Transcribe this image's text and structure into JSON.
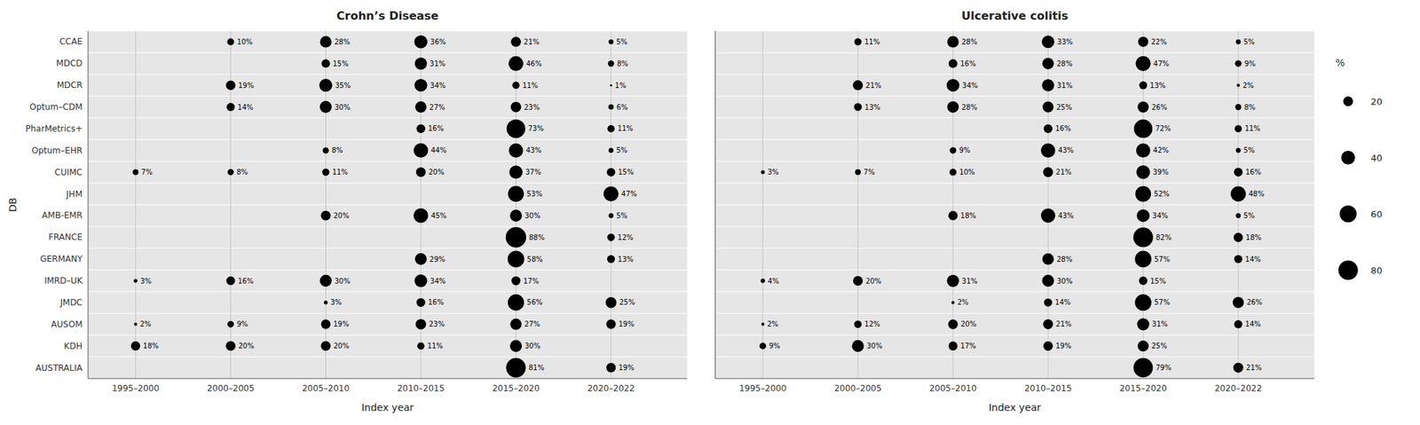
{
  "chart_data": [
    {
      "type": "bubble",
      "title": "Crohn’s Disease",
      "x_label": "Index year",
      "y_label": "DB",
      "categories": [
        "1995–2000",
        "2000–2005",
        "2005–2010",
        "2010–2015",
        "2015–2020",
        "2020–2022"
      ],
      "color": "#000000",
      "grid": true,
      "data_labels": true,
      "series": [
        {
          "name": "CCAE",
          "values": [
            null,
            10,
            28,
            36,
            21,
            5
          ],
          "value_labels": [
            null,
            "10%",
            "28%",
            "36%",
            "21%",
            "5%"
          ]
        },
        {
          "name": "MDCD",
          "values": [
            null,
            null,
            15,
            31,
            46,
            8
          ],
          "value_labels": [
            null,
            null,
            "15%",
            "31%",
            "46%",
            "8%"
          ]
        },
        {
          "name": "MDCR",
          "values": [
            null,
            19,
            35,
            34,
            11,
            1
          ],
          "value_labels": [
            null,
            "19%",
            "35%",
            "34%",
            "11%",
            "1%"
          ]
        },
        {
          "name": "Optum–CDM",
          "values": [
            null,
            14,
            30,
            27,
            23,
            6
          ],
          "value_labels": [
            null,
            "14%",
            "30%",
            "27%",
            "23%",
            "6%"
          ]
        },
        {
          "name": "PharMetrics+",
          "values": [
            null,
            null,
            null,
            16,
            73,
            11
          ],
          "value_labels": [
            null,
            null,
            null,
            "16%",
            "73%",
            "11%"
          ]
        },
        {
          "name": "Optum–EHR",
          "values": [
            null,
            null,
            8,
            44,
            43,
            5
          ],
          "value_labels": [
            null,
            null,
            "8%",
            "44%",
            "43%",
            "5%"
          ]
        },
        {
          "name": "CUIMC",
          "values": [
            7,
            8,
            11,
            20,
            37,
            15
          ],
          "value_labels": [
            "7%",
            "8%",
            "11%",
            "20%",
            "37%",
            "15%"
          ]
        },
        {
          "name": "JHM",
          "values": [
            null,
            null,
            null,
            null,
            53,
            47
          ],
          "value_labels": [
            null,
            null,
            null,
            null,
            "53%",
            "47%"
          ]
        },
        {
          "name": "AMB-EMR",
          "values": [
            null,
            null,
            20,
            45,
            30,
            5
          ],
          "value_labels": [
            null,
            null,
            "20%",
            "45%",
            "30%",
            "5%"
          ]
        },
        {
          "name": "FRANCE",
          "values": [
            null,
            null,
            null,
            null,
            88,
            12
          ],
          "value_labels": [
            null,
            null,
            null,
            null,
            "88%",
            "12%"
          ]
        },
        {
          "name": "GERMANY",
          "values": [
            null,
            null,
            null,
            29,
            58,
            13
          ],
          "value_labels": [
            null,
            null,
            null,
            "29%",
            "58%",
            "13%"
          ]
        },
        {
          "name": "IMRD–UK",
          "values": [
            3,
            16,
            30,
            34,
            17,
            null
          ],
          "value_labels": [
            "3%",
            "16%",
            "30%",
            "34%",
            "17%",
            null
          ]
        },
        {
          "name": "JMDC",
          "values": [
            null,
            null,
            3,
            16,
            56,
            25
          ],
          "value_labels": [
            null,
            null,
            "3%",
            "16%",
            "56%",
            "25%"
          ]
        },
        {
          "name": "AUSOM",
          "values": [
            2,
            9,
            19,
            23,
            27,
            19
          ],
          "value_labels": [
            "2%",
            "9%",
            "19%",
            "23%",
            "27%",
            "19%"
          ]
        },
        {
          "name": "KDH",
          "values": [
            18,
            20,
            20,
            11,
            30,
            null
          ],
          "value_labels": [
            "18%",
            "20%",
            "20%",
            "11%",
            "30%",
            null
          ]
        },
        {
          "name": "AUSTRALIA",
          "values": [
            null,
            null,
            null,
            null,
            81,
            19
          ],
          "value_labels": [
            null,
            null,
            null,
            null,
            "81%",
            "19%"
          ]
        }
      ]
    },
    {
      "type": "bubble",
      "title": "Ulcerative colitis",
      "x_label": "Index year",
      "categories": [
        "1995–2000",
        "2000–2005",
        "2005–2010",
        "2010–2015",
        "2015–2020",
        "2020–2022"
      ],
      "color": "#000000",
      "grid": true,
      "data_labels": true,
      "tick_labels": "x",
      "legend": "right",
      "legend_title": "%",
      "legend_values": [
        20,
        40,
        60,
        80
      ],
      "series": [
        {
          "values": [
            null,
            11,
            28,
            33,
            22,
            5
          ],
          "value_labels": [
            null,
            "11%",
            "28%",
            "33%",
            "22%",
            "5%"
          ]
        },
        {
          "values": [
            null,
            null,
            16,
            28,
            47,
            9
          ],
          "value_labels": [
            null,
            null,
            "16%",
            "28%",
            "47%",
            "9%"
          ]
        },
        {
          "values": [
            null,
            21,
            34,
            31,
            13,
            2
          ],
          "value_labels": [
            null,
            "21%",
            "34%",
            "31%",
            "13%",
            "2%"
          ]
        },
        {
          "values": [
            null,
            13,
            28,
            25,
            26,
            8
          ],
          "value_labels": [
            null,
            "13%",
            "28%",
            "25%",
            "26%",
            "8%"
          ]
        },
        {
          "values": [
            null,
            null,
            null,
            16,
            72,
            11
          ],
          "value_labels": [
            null,
            null,
            null,
            "16%",
            "72%",
            "11%"
          ]
        },
        {
          "values": [
            null,
            null,
            9,
            43,
            42,
            5
          ],
          "value_labels": [
            null,
            null,
            "9%",
            "43%",
            "42%",
            "5%"
          ]
        },
        {
          "values": [
            3,
            7,
            10,
            21,
            39,
            16
          ],
          "value_labels": [
            "3%",
            "7%",
            "10%",
            "21%",
            "39%",
            "16%"
          ]
        },
        {
          "values": [
            null,
            null,
            null,
            null,
            52,
            48
          ],
          "value_labels": [
            null,
            null,
            null,
            null,
            "52%",
            "48%"
          ]
        },
        {
          "values": [
            null,
            null,
            18,
            43,
            34,
            5
          ],
          "value_labels": [
            null,
            null,
            "18%",
            "43%",
            "34%",
            "5%"
          ]
        },
        {
          "values": [
            null,
            null,
            null,
            null,
            82,
            18
          ],
          "value_labels": [
            null,
            null,
            null,
            null,
            "82%",
            "18%"
          ]
        },
        {
          "values": [
            null,
            null,
            null,
            28,
            57,
            14
          ],
          "value_labels": [
            null,
            null,
            null,
            "28%",
            "57%",
            "14%"
          ]
        },
        {
          "values": [
            4,
            20,
            31,
            30,
            15,
            null
          ],
          "value_labels": [
            "4%",
            "20%",
            "31%",
            "30%",
            "15%",
            null
          ]
        },
        {
          "values": [
            null,
            null,
            2,
            14,
            57,
            26
          ],
          "value_labels": [
            null,
            null,
            "2%",
            "14%",
            "57%",
            "26%"
          ]
        },
        {
          "values": [
            2,
            12,
            20,
            21,
            31,
            14
          ],
          "value_labels": [
            "2%",
            "12%",
            "20%",
            "21%",
            "31%",
            "14%"
          ]
        },
        {
          "values": [
            9,
            30,
            17,
            19,
            25,
            null
          ],
          "value_labels": [
            "9%",
            "30%",
            "17%",
            "19%",
            "25%",
            null
          ]
        },
        {
          "values": [
            null,
            null,
            null,
            null,
            79,
            21
          ],
          "value_labels": [
            null,
            null,
            null,
            null,
            "79%",
            "21%"
          ]
        }
      ]
    }
  ]
}
